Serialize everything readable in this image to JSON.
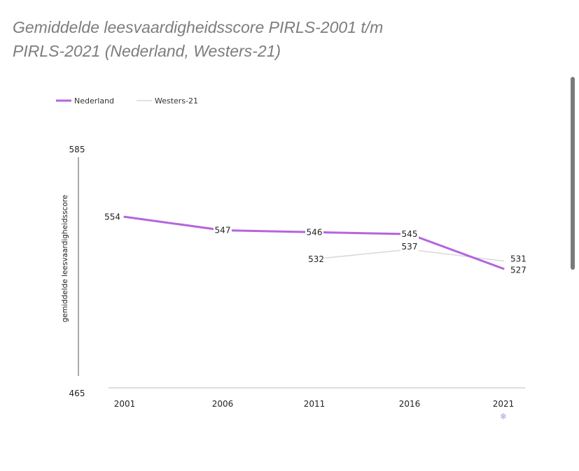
{
  "page": {
    "title_line1": "Gemiddelde leesvaardigheidsscore PIRLS-2001 t/m",
    "title_line2": "PIRLS-2021 (Nederland, Westers-21)"
  },
  "chart_data": {
    "type": "line",
    "ylabel": "gemiddelde leesvaardigheidsscore",
    "ylim": [
      465,
      585
    ],
    "y_tick_labels": [
      "585",
      "465"
    ],
    "categories": [
      "2001",
      "2006",
      "2011",
      "2016",
      "2021"
    ],
    "legend_position": "top-left",
    "grid": false,
    "series": [
      {
        "name": "Nederland",
        "color": "#b565dc",
        "values": [
          554,
          547,
          546,
          545,
          527
        ]
      },
      {
        "name": "Westers-21",
        "color": "#d8d8d8",
        "values": [
          null,
          null,
          532,
          537,
          531
        ]
      }
    ],
    "annotations": [
      {
        "category": "2021",
        "icon": "snowflake-icon",
        "color": "#9aa8d8"
      }
    ]
  }
}
